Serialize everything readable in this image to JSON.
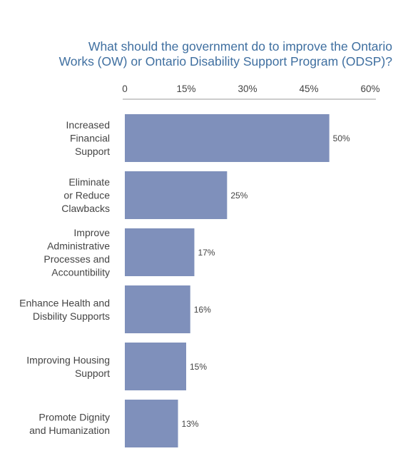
{
  "chart_data": {
    "type": "bar",
    "orientation": "horizontal",
    "title_lines": [
      "What should the government do to improve the Ontario",
      "Works (OW) or Ontario Disability Support Program (ODSP)?"
    ],
    "xlim": [
      0,
      60
    ],
    "ticks": [
      {
        "value": 0,
        "label": "0"
      },
      {
        "value": 15,
        "label": "15%"
      },
      {
        "value": 30,
        "label": "30%"
      },
      {
        "value": 45,
        "label": "45%"
      },
      {
        "value": 60,
        "label": "60%"
      }
    ],
    "categories": [
      [
        "Increased",
        "Financial",
        "Support"
      ],
      [
        "Eliminate",
        "or Reduce",
        "Clawbacks"
      ],
      [
        "Improve",
        "Administrative",
        "Processes and",
        "Accountibility"
      ],
      [
        "Enhance Health and",
        "Disbility Supports"
      ],
      [
        "Improving Housing",
        "Support"
      ],
      [
        "Promote Dignity",
        "and Humanization"
      ]
    ],
    "values": [
      50,
      25,
      17,
      16,
      15,
      13
    ],
    "value_labels": [
      "50%",
      "25%",
      "17%",
      "16%",
      "15%",
      "13%"
    ],
    "bar_color": "#7f90bb",
    "title_color": "#3f6fa0",
    "axis_color": "#999999",
    "text_color": "#444444",
    "grid": false,
    "legend": "none"
  }
}
